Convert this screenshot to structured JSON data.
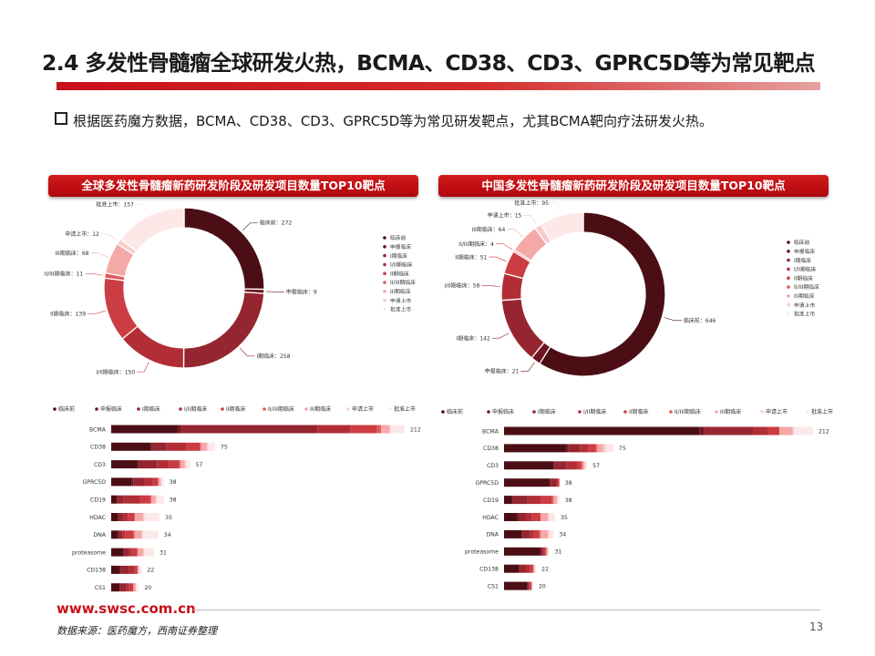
{
  "title": "2.4 多发性骨髓瘤全球研发火热，BCMA、CD38、CD3、GPRC5D等为常见靶点",
  "bullet": "根据医药魔方数据，BCMA、CD38、CD3、GPRC5D等为常见研发靶点，尤其BCMA靶向疗法研发火热。",
  "footer": {
    "url": "www.swsc.com.cn",
    "source": "数据来源：医药魔方，西南证券整理",
    "page": "13"
  },
  "colors": {
    "accent": "#c8101a",
    "stages": [
      "#4a0e14",
      "#6e1620",
      "#952530",
      "#b22e36",
      "#cc3d43",
      "#e25a5a",
      "#f4a8a8",
      "#f9cccc",
      "#fde8e8"
    ]
  },
  "chart_data": [
    {
      "type": "pie",
      "title": "全球多发性骨髓瘤新药研发阶段及研发项目数量TOP10靶点",
      "legend_position": "right",
      "slices": [
        {
          "name": "临床前",
          "value": 272,
          "label": "临床前：272"
        },
        {
          "name": "申报临床",
          "value": 9,
          "label": "申报临床：9"
        },
        {
          "name": "I期临床",
          "value": 258,
          "label": "I期临床：258"
        },
        {
          "name": "I/II期临床",
          "value": 150,
          "label": "I/II期临床：150"
        },
        {
          "name": "II期临床",
          "value": 139,
          "label": "II期临床：139"
        },
        {
          "name": "II/III期临床",
          "value": 11,
          "label": "II/III期临床：11"
        },
        {
          "name": "III期临床",
          "value": 68,
          "label": "III期临床：68"
        },
        {
          "name": "申请上市",
          "value": 12,
          "label": "申请上市：12"
        },
        {
          "name": "批准上市",
          "value": 157,
          "label": "批准上市：157"
        }
      ]
    },
    {
      "type": "pie",
      "title": "中国多发性骨髓瘤新药研发阶段及研发项目数量TOP10靶点",
      "legend_position": "right",
      "slices": [
        {
          "name": "临床前",
          "value": 646,
          "label": "临床前：646"
        },
        {
          "name": "申报临床",
          "value": 21,
          "label": "申报临床：21"
        },
        {
          "name": "I期临床",
          "value": 142,
          "label": "I期临床：142"
        },
        {
          "name": "I/II期临床",
          "value": 58,
          "label": "I/II期临床：58"
        },
        {
          "name": "II期临床",
          "value": 51,
          "label": "II期临床：51"
        },
        {
          "name": "II/III期临床",
          "value": 4,
          "label": "II/III期临床：4"
        },
        {
          "name": "III期临床",
          "value": 64,
          "label": "III期临床：64"
        },
        {
          "name": "申请上市",
          "value": 15,
          "label": "申请上市：15"
        },
        {
          "name": "批准上市",
          "value": 95,
          "label": "批准上市：95"
        }
      ]
    },
    {
      "type": "bar",
      "orientation": "horizontal",
      "stacked": true,
      "legend_position": "top",
      "series_names": [
        "临床前",
        "申报临床",
        "I期临床",
        "I/II期临床",
        "II期临床",
        "II/III期临床",
        "III期临床",
        "申请上市",
        "批准上市"
      ],
      "rows": [
        {
          "category": "BCMA",
          "values": [
            48,
            2,
            99,
            24,
            19,
            3,
            6,
            1,
            10
          ],
          "total": 212
        },
        {
          "category": "CD38",
          "values": [
            28,
            1,
            11,
            14,
            10,
            1,
            4,
            1,
            5
          ],
          "total": 75
        },
        {
          "category": "CD3",
          "values": [
            19,
            1,
            13,
            9,
            7,
            1,
            3,
            1,
            3
          ],
          "total": 57
        },
        {
          "category": "GPRC5D",
          "values": [
            15,
            1,
            8,
            6,
            4,
            0,
            2,
            0,
            2
          ],
          "total": 38
        },
        {
          "category": "CD19",
          "values": [
            4,
            0,
            5,
            12,
            7,
            1,
            3,
            1,
            5
          ],
          "total": 38
        },
        {
          "category": "HDAC",
          "values": [
            5,
            0,
            4,
            3,
            5,
            0,
            6,
            1,
            11
          ],
          "total": 35
        },
        {
          "category": "DNA",
          "values": [
            5,
            0,
            3,
            2,
            6,
            1,
            5,
            1,
            11
          ],
          "total": 34
        },
        {
          "category": "proteasome",
          "values": [
            9,
            0,
            4,
            2,
            4,
            0,
            4,
            1,
            7
          ],
          "total": 31
        },
        {
          "category": "CD138",
          "values": [
            6,
            1,
            6,
            4,
            2,
            0,
            1,
            0,
            2
          ],
          "total": 22
        },
        {
          "category": "CS1",
          "values": [
            6,
            0,
            5,
            2,
            3,
            0,
            2,
            0,
            2
          ],
          "total": 20
        }
      ]
    },
    {
      "type": "bar",
      "orientation": "horizontal",
      "stacked": true,
      "legend_position": "top",
      "series_names": [
        "临床前",
        "申报临床",
        "I期临床",
        "I/II期临床",
        "II期临床",
        "II/III期临床",
        "III期临床",
        "申请上市",
        "批准上市"
      ],
      "rows": [
        {
          "category": "BCMA",
          "values": [
            134,
            3,
            34,
            10,
            8,
            0,
            9,
            1,
            13
          ],
          "total": 212
        },
        {
          "category": "CD38",
          "values": [
            43,
            1,
            8,
            6,
            5,
            1,
            4,
            2,
            5
          ],
          "total": 75
        },
        {
          "category": "CD3",
          "values": [
            34,
            0,
            9,
            7,
            3,
            1,
            1,
            1,
            1
          ],
          "total": 57
        },
        {
          "category": "GPRC5D",
          "values": [
            31,
            1,
            4,
            1,
            1,
            0,
            0,
            0,
            0
          ],
          "total": 38
        },
        {
          "category": "CD19",
          "values": [
            5,
            1,
            10,
            9,
            8,
            1,
            2,
            1,
            1
          ],
          "total": 38
        },
        {
          "category": "HDAC",
          "values": [
            9,
            1,
            5,
            4,
            6,
            0,
            5,
            1,
            4
          ],
          "total": 35
        },
        {
          "category": "DNA",
          "values": [
            12,
            1,
            5,
            2,
            4,
            1,
            5,
            1,
            3
          ],
          "total": 34
        },
        {
          "category": "proteasome",
          "values": [
            25,
            0,
            2,
            1,
            1,
            0,
            1,
            0,
            1
          ],
          "total": 31
        },
        {
          "category": "CD138",
          "values": [
            10,
            0,
            5,
            3,
            2,
            0,
            1,
            0,
            1
          ],
          "total": 22
        },
        {
          "category": "CS1",
          "values": [
            16,
            0,
            1,
            1,
            1,
            0,
            0,
            0,
            1
          ],
          "total": 20
        }
      ]
    }
  ]
}
